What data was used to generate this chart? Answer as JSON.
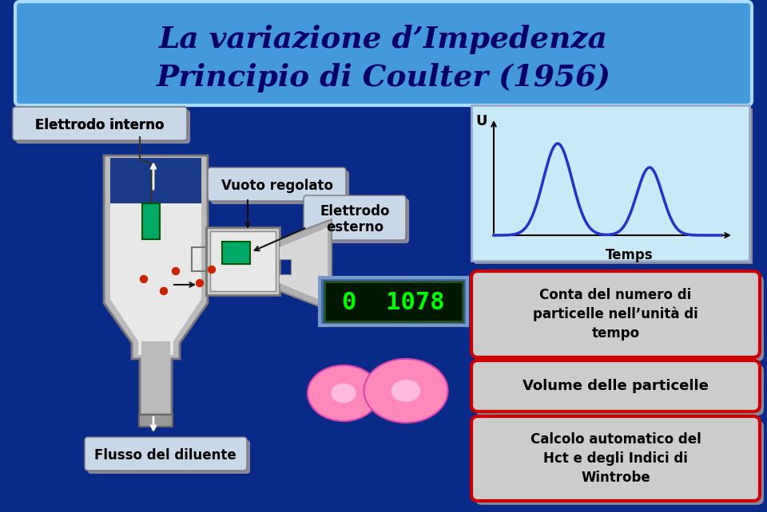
{
  "title_line1": "La variazione d’Impedenza",
  "title_line2": "Principio di Coulter (1956)",
  "bg_color": "#0a2a8a",
  "title_bg": "#4499dd",
  "title_text_color": "#000066",
  "label_elettrodo_interno": "Elettrodo interno",
  "label_vuoto_regolato": "Vuoto regolato",
  "label_elettrodo_esterno": "Elettrodo\nesterno",
  "label_flusso": "Flusso del diluente",
  "label_conta": "Conta del numero di\nparticelle nell’unità di\ntempo",
  "label_volume": "Volume delle particelle",
  "label_calcolo": "Calcolo automatico del\nHct e degli Indici di\nWintrobe",
  "label_temps": "Temps",
  "label_U": "U",
  "display_text": "0  1078",
  "graph_box_color": "#c8eaf8",
  "label_box_color": "#c8d8e8",
  "red_border": "#cc0000",
  "green_electrode": "#00aa66"
}
